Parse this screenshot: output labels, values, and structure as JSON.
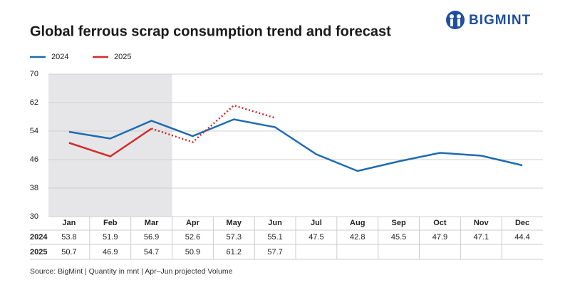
{
  "brand": "BIGMINT",
  "chart_data": {
    "type": "line",
    "title": "Global ferrous scrap consumption trend and forecast",
    "categories": [
      "Jan",
      "Feb",
      "Mar",
      "Apr",
      "May",
      "Jun",
      "Jul",
      "Aug",
      "Sep",
      "Oct",
      "Nov",
      "Dec"
    ],
    "series": [
      {
        "name": "2024",
        "color": "#1f6bb0",
        "values": [
          53.8,
          51.9,
          56.9,
          52.6,
          57.3,
          55.1,
          47.5,
          42.8,
          45.5,
          47.9,
          47.1,
          44.4
        ]
      },
      {
        "name": "2025",
        "color": "#d42a2a",
        "values": [
          50.7,
          46.9,
          54.7,
          50.9,
          61.2,
          57.7,
          null,
          null,
          null,
          null,
          null,
          null
        ],
        "dotted_from": "Mar"
      }
    ],
    "shaded_through": "Mar",
    "ylim": [
      30,
      70
    ],
    "yticks": [
      30,
      38,
      46,
      54,
      62,
      70
    ],
    "grid": true,
    "legend": "top-left",
    "source": "Source: BigMint | Quantity in mnt | Apr–Jun projected Volume"
  }
}
